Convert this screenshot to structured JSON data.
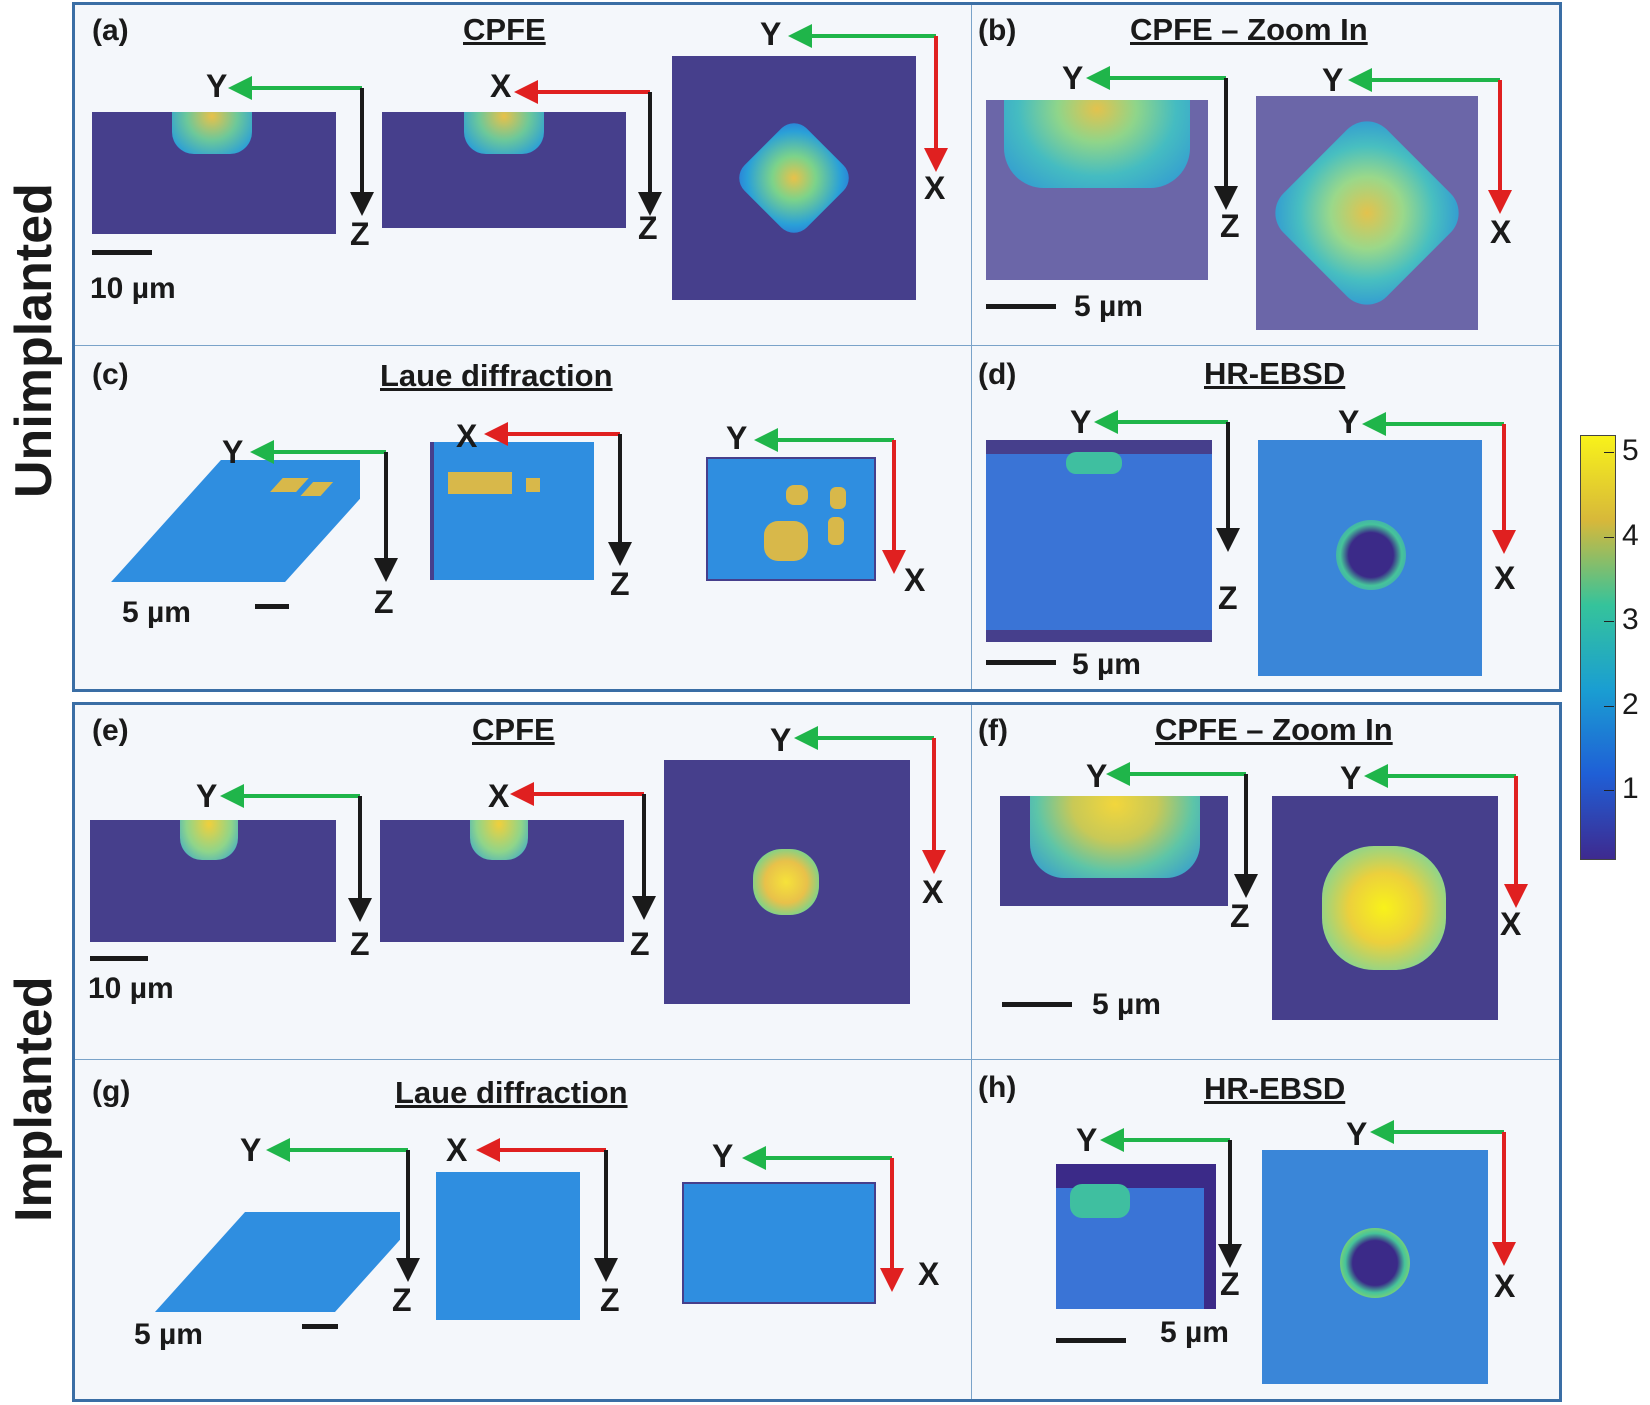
{
  "groups": {
    "unimplanted": "Unimplanted",
    "implanted": "Implanted"
  },
  "panels": {
    "a": {
      "label": "(a)",
      "title": "CPFE",
      "scale": "10 µm"
    },
    "b": {
      "label": "(b)",
      "title": "CPFE – Zoom In",
      "scale": "5 µm"
    },
    "c": {
      "label": "(c)",
      "title": "Laue diffraction",
      "scale": "5 µm"
    },
    "d": {
      "label": "(d)",
      "title": "HR-EBSD",
      "scale": "5 µm"
    },
    "e": {
      "label": "(e)",
      "title": "CPFE",
      "scale": "10 µm"
    },
    "f": {
      "label": "(f)",
      "title": "CPFE – Zoom In",
      "scale": "5 µm"
    },
    "g": {
      "label": "(g)",
      "title": "Laue diffraction",
      "scale": "5 µm"
    },
    "h": {
      "label": "(h)",
      "title": "HR-EBSD",
      "scale": "5 µm"
    }
  },
  "axes": {
    "x": "X",
    "y": "Y",
    "z": "Z"
  },
  "colorbar": {
    "ticks": [
      "5",
      "4",
      "3",
      "2",
      "1"
    ],
    "min": 0.2,
    "max": 5.2,
    "colormap": "parula"
  },
  "colors": {
    "y_arrow": "#1fb54a",
    "x_arrow": "#e02020",
    "z_arrow": "#1a1a1a",
    "frame": "#3a6ea5",
    "map_background": "#463f8c",
    "map_field": "#2f8ee0",
    "hotspot": "#d8b84a"
  }
}
